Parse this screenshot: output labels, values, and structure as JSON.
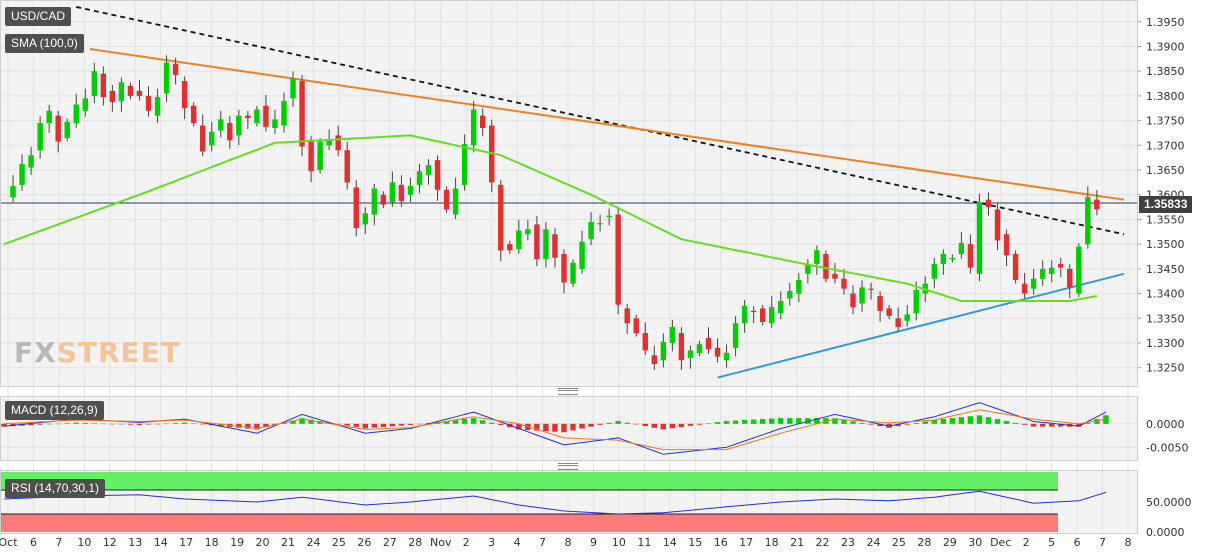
{
  "panel": {
    "symbol_label": "USD/CAD",
    "sma_label": "SMA (100,0)",
    "macd_label": "MACD (12,26,9)",
    "rsi_label": "RSI (14,70,30,1)",
    "last_price": "1.35833",
    "watermark": {
      "fx": "FX",
      "street": "STREET"
    }
  },
  "colors": {
    "bull": "#00cc00",
    "bear": "#e03030",
    "sma": "#66dd22",
    "resistance_line": "#f08020",
    "support_line": "#3399dd",
    "dashed_trend": "#111111",
    "macd_line": "#2233cc",
    "signal_line": "#ee7722",
    "rsi_line": "#2233cc",
    "rsi_overbought_zone": "#66ee66",
    "rsi_oversold_zone": "#ff7b7b"
  },
  "chart_data": {
    "type": "candlestick",
    "symbol": "USD/CAD",
    "last_price": 1.35833,
    "x_tick_labels": [
      "Oct",
      "6",
      "7",
      "10",
      "12",
      "13",
      "14",
      "17",
      "18",
      "19",
      "20",
      "21",
      "24",
      "25",
      "26",
      "27",
      "28",
      "Nov",
      "2",
      "3",
      "4",
      "7",
      "8",
      "9",
      "10",
      "11",
      "14",
      "15",
      "16",
      "17",
      "18",
      "21",
      "22",
      "23",
      "24",
      "25",
      "28",
      "29",
      "30",
      "Dec",
      "2",
      "5",
      "6",
      "7",
      "8"
    ],
    "y_axis": {
      "ticks": [
        1.395,
        1.39,
        1.385,
        1.38,
        1.375,
        1.37,
        1.365,
        1.36,
        1.355,
        1.35,
        1.345,
        1.34,
        1.335,
        1.33,
        1.325
      ],
      "range": [
        1.3215,
        1.399
      ]
    },
    "price_path": [
      [
        0,
        1.3595
      ],
      [
        1,
        1.362
      ],
      [
        2,
        1.3655
      ],
      [
        3,
        1.369
      ],
      [
        4,
        1.3745
      ],
      [
        5,
        1.376
      ],
      [
        6,
        1.3715
      ],
      [
        7,
        1.3745
      ],
      [
        8,
        1.377
      ],
      [
        9,
        1.38
      ],
      [
        10,
        1.3845
      ],
      [
        11,
        1.381
      ],
      [
        12,
        1.379
      ],
      [
        13,
        1.382
      ],
      [
        14,
        1.381
      ],
      [
        15,
        1.38
      ],
      [
        16,
        1.376
      ],
      [
        17,
        1.3805
      ],
      [
        18,
        1.3865
      ],
      [
        19,
        1.383
      ],
      [
        20,
        1.378
      ],
      [
        21,
        1.374
      ],
      [
        22,
        1.37
      ],
      [
        23,
        1.373
      ],
      [
        24,
        1.3745
      ],
      [
        25,
        1.372
      ],
      [
        26,
        1.376
      ],
      [
        27,
        1.3745
      ],
      [
        28,
        1.378
      ],
      [
        29,
        1.3735
      ],
      [
        30,
        1.374
      ],
      [
        31,
        1.3795
      ],
      [
        32,
        1.383
      ],
      [
        33,
        1.371
      ],
      [
        34,
        1.365
      ],
      [
        35,
        1.37
      ],
      [
        36,
        1.372
      ],
      [
        37,
        1.369
      ],
      [
        38,
        1.3615
      ],
      [
        39,
        1.354
      ],
      [
        40,
        1.356
      ],
      [
        41,
        1.36
      ],
      [
        42,
        1.3585
      ],
      [
        43,
        1.362
      ],
      [
        44,
        1.36
      ],
      [
        45,
        1.362
      ],
      [
        46,
        1.364
      ],
      [
        47,
        1.367
      ],
      [
        48,
        1.361
      ],
      [
        49,
        1.356
      ],
      [
        50,
        1.362
      ],
      [
        51,
        1.37
      ],
      [
        52,
        1.376
      ],
      [
        53,
        1.374
      ],
      [
        54,
        1.362
      ],
      [
        55,
        1.35
      ],
      [
        56,
        1.349
      ],
      [
        57,
        1.352
      ],
      [
        58,
        1.354
      ],
      [
        59,
        1.347
      ],
      [
        60,
        1.352
      ],
      [
        61,
        1.348
      ],
      [
        62,
        1.342
      ],
      [
        63,
        1.345
      ],
      [
        64,
        1.351
      ],
      [
        65,
        1.354
      ],
      [
        66,
        1.3555
      ],
      [
        67,
        1.356
      ],
      [
        68,
        1.337
      ],
      [
        69,
        1.335
      ],
      [
        70,
        1.332
      ],
      [
        71,
        1.3275
      ],
      [
        72,
        1.3265
      ],
      [
        73,
        1.33
      ],
      [
        74,
        1.332
      ],
      [
        75,
        1.327
      ],
      [
        76,
        1.328
      ],
      [
        77,
        1.331
      ],
      [
        78,
        1.329
      ],
      [
        79,
        1.3265
      ],
      [
        80,
        1.329
      ],
      [
        81,
        1.334
      ],
      [
        82,
        1.3365
      ],
      [
        83,
        1.337
      ],
      [
        84,
        1.334
      ],
      [
        85,
        1.336
      ],
      [
        86,
        1.339
      ],
      [
        87,
        1.34
      ],
      [
        88,
        1.344
      ],
      [
        89,
        1.346
      ],
      [
        90,
        1.348
      ],
      [
        91,
        1.344
      ],
      [
        92,
        1.343
      ],
      [
        93,
        1.34
      ],
      [
        94,
        1.338
      ],
      [
        95,
        1.341
      ],
      [
        96,
        1.3395
      ],
      [
        97,
        1.337
      ],
      [
        98,
        1.335
      ],
      [
        99,
        1.3345
      ],
      [
        100,
        1.336
      ],
      [
        101,
        1.34
      ],
      [
        102,
        1.343
      ],
      [
        103,
        1.346
      ],
      [
        104,
        1.347
      ],
      [
        105,
        1.348
      ],
      [
        106,
        1.35
      ],
      [
        107,
        1.344
      ],
      [
        108,
        1.359
      ],
      [
        109,
        1.357
      ],
      [
        110,
        1.352
      ],
      [
        111,
        1.348
      ],
      [
        112,
        1.342
      ],
      [
        113,
        1.341
      ],
      [
        114,
        1.343
      ],
      [
        115,
        1.344
      ],
      [
        116,
        1.346
      ],
      [
        117,
        1.345
      ],
      [
        118,
        1.34
      ],
      [
        119,
        1.35
      ],
      [
        120,
        1.359
      ],
      [
        121,
        1.3583
      ]
    ],
    "sma_100": [
      [
        0,
        1.35
      ],
      [
        15,
        1.36
      ],
      [
        30,
        1.3705
      ],
      [
        45,
        1.372
      ],
      [
        55,
        1.368
      ],
      [
        65,
        1.36
      ],
      [
        75,
        1.351
      ],
      [
        90,
        1.3455
      ],
      [
        100,
        1.342
      ],
      [
        106,
        1.3385
      ],
      [
        113,
        1.3385
      ],
      [
        118,
        1.3385
      ],
      [
        121,
        1.3395
      ]
    ],
    "trend_lines": {
      "dashed_descending": [
        [
          8,
          1.398
        ],
        [
          124,
          1.352
        ]
      ],
      "resistance_descending": [
        [
          9.5,
          1.3895
        ],
        [
          124,
          1.359
        ]
      ],
      "support_ascending": [
        [
          79,
          1.323
        ],
        [
          124,
          1.344
        ]
      ],
      "horizontal_last_price": 1.35833
    },
    "macd": {
      "y_ticks": [
        0.0,
        -0.005
      ],
      "y_range": [
        -0.0075,
        0.0055
      ],
      "macd_line": [
        [
          0,
          -0.0005
        ],
        [
          8,
          0.001
        ],
        [
          15,
          0.0003
        ],
        [
          20,
          0.001
        ],
        [
          28,
          -0.002
        ],
        [
          33,
          0.002
        ],
        [
          40,
          -0.002
        ],
        [
          45,
          -0.001
        ],
        [
          52,
          0.0025
        ],
        [
          57,
          -0.001
        ],
        [
          62,
          -0.0045
        ],
        [
          68,
          -0.003
        ],
        [
          73,
          -0.0065
        ],
        [
          80,
          -0.005
        ],
        [
          86,
          -0.001
        ],
        [
          92,
          0.002
        ],
        [
          98,
          -0.0005
        ],
        [
          103,
          0.0015
        ],
        [
          108,
          0.0045
        ],
        [
          114,
          0.0005
        ],
        [
          119,
          -0.0005
        ],
        [
          122,
          0.0025
        ]
      ],
      "signal_line": [
        [
          0,
          0.0
        ],
        [
          8,
          0.0008
        ],
        [
          15,
          0.0005
        ],
        [
          20,
          0.0008
        ],
        [
          28,
          -0.001
        ],
        [
          33,
          0.001
        ],
        [
          40,
          -0.0012
        ],
        [
          45,
          -0.0008
        ],
        [
          52,
          0.0015
        ],
        [
          57,
          0.0
        ],
        [
          62,
          -0.003
        ],
        [
          68,
          -0.0035
        ],
        [
          73,
          -0.0055
        ],
        [
          80,
          -0.0055
        ],
        [
          86,
          -0.002
        ],
        [
          92,
          0.001
        ],
        [
          98,
          0.0002
        ],
        [
          103,
          0.0008
        ],
        [
          108,
          0.003
        ],
        [
          114,
          0.001
        ],
        [
          119,
          0.0
        ],
        [
          122,
          0.001
        ]
      ]
    },
    "rsi": {
      "y_ticks": [
        50.0,
        0.0
      ],
      "y_range": [
        0,
        100
      ],
      "overbought": 70,
      "oversold": 30,
      "values": [
        [
          0,
          55
        ],
        [
          8,
          60
        ],
        [
          15,
          62
        ],
        [
          20,
          55
        ],
        [
          28,
          50
        ],
        [
          33,
          58
        ],
        [
          40,
          45
        ],
        [
          45,
          50
        ],
        [
          52,
          60
        ],
        [
          57,
          45
        ],
        [
          62,
          35
        ],
        [
          68,
          30
        ],
        [
          73,
          32
        ],
        [
          80,
          42
        ],
        [
          86,
          50
        ],
        [
          92,
          55
        ],
        [
          98,
          52
        ],
        [
          103,
          58
        ],
        [
          108,
          68
        ],
        [
          114,
          48
        ],
        [
          119,
          52
        ],
        [
          122,
          66
        ]
      ]
    }
  }
}
